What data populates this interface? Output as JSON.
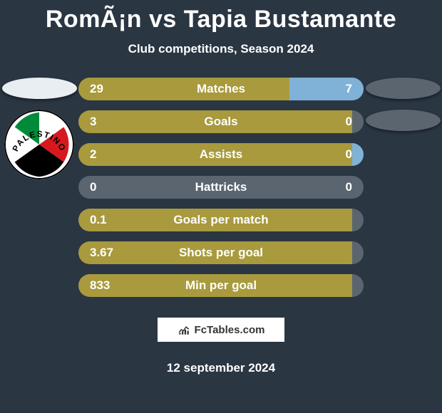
{
  "title": "RomÃ¡n vs Tapia Bustamante",
  "subtitle": "Club competitions, Season 2024",
  "date": "12 september 2024",
  "branding_text": "FcTables.com",
  "colors": {
    "olive": "#a89a3d",
    "blue": "#7fb2d6",
    "grey": "#5b6570",
    "badge_left": "#e9eef2",
    "badge_right": "#5b6570"
  },
  "left_club": {
    "name": "Palestino",
    "palette": {
      "green": "#008b3a",
      "red": "#d7191f",
      "black": "#000000",
      "white": "#ffffff"
    }
  },
  "stats": [
    {
      "label": "Matches",
      "left_val": "29",
      "right_val": "7",
      "left_pct": 74,
      "right_pct": 26,
      "left_color": "olive",
      "right_color": "blue"
    },
    {
      "label": "Goals",
      "left_val": "3",
      "right_val": "0",
      "left_pct": 96,
      "right_pct": 4,
      "left_color": "olive",
      "right_color": "grey"
    },
    {
      "label": "Assists",
      "left_val": "2",
      "right_val": "0",
      "left_pct": 96,
      "right_pct": 4,
      "left_color": "olive",
      "right_color": "blue"
    },
    {
      "label": "Hattricks",
      "left_val": "0",
      "right_val": "0",
      "left_pct": 50,
      "right_pct": 50,
      "left_color": "grey",
      "right_color": "grey"
    },
    {
      "label": "Goals per match",
      "left_val": "0.1",
      "right_val": "",
      "left_pct": 100,
      "right_pct": 0,
      "left_color": "olive",
      "right_color": "grey"
    },
    {
      "label": "Shots per goal",
      "left_val": "3.67",
      "right_val": "",
      "left_pct": 100,
      "right_pct": 0,
      "left_color": "olive",
      "right_color": "grey"
    },
    {
      "label": "Min per goal",
      "left_val": "833",
      "right_val": "",
      "left_pct": 100,
      "right_pct": 0,
      "left_color": "olive",
      "right_color": "grey"
    }
  ]
}
